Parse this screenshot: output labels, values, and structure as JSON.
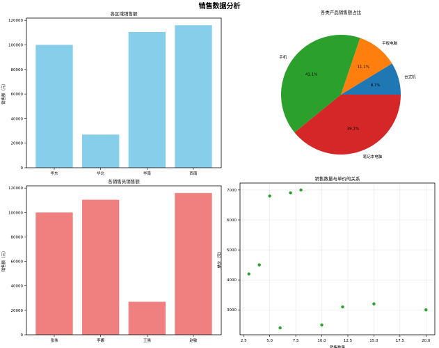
{
  "figure_title": "销售数据分析",
  "chart_data": [
    {
      "type": "bar",
      "title": "各区域销售额",
      "xlabel": "",
      "ylabel": "销售额（元）",
      "categories": [
        "华东",
        "华北",
        "华南",
        "西南"
      ],
      "values": [
        100000,
        27000,
        110500,
        116000
      ],
      "ylim": [
        0,
        121800
      ],
      "yticks": [
        0,
        20000,
        40000,
        60000,
        80000,
        100000,
        120000
      ],
      "color": "#87CEEB",
      "grid": false
    },
    {
      "type": "pie",
      "title": "各类产品销售额占比",
      "labels": [
        "台式机",
        "平板电脑",
        "手机",
        "笔记本电脑"
      ],
      "values": [
        8.7,
        11.1,
        41.1,
        39.1
      ],
      "pct_labels": [
        "8.7%",
        "11.1%",
        "41.1%",
        "39.1%"
      ],
      "colors": [
        "#1f77b4",
        "#ff7f0e",
        "#2ca02c",
        "#d62728"
      ],
      "start_angle": 0,
      "direction": "counterclockwise"
    },
    {
      "type": "bar",
      "title": "各销售员销售额",
      "xlabel": "",
      "ylabel": "销售额（元）",
      "categories": [
        "张伟",
        "李娜",
        "王强",
        "赵敏"
      ],
      "values": [
        100000,
        110500,
        27000,
        116000
      ],
      "ylim": [
        0,
        121800
      ],
      "yticks": [
        0,
        20000,
        40000,
        60000,
        80000,
        100000,
        120000
      ],
      "color": "#F08080",
      "grid": false
    },
    {
      "type": "scatter",
      "title": "销售数量与单价的关系",
      "xlabel": "销售数量",
      "ylabel": "单价（元）",
      "x": [
        3,
        4,
        5,
        6,
        7,
        8,
        10,
        12,
        15,
        20
      ],
      "y": [
        4200,
        4500,
        6800,
        2400,
        6900,
        7000,
        2500,
        3100,
        3200,
        3000
      ],
      "xlim": [
        2.15,
        20.85
      ],
      "ylim": [
        2170,
        7230
      ],
      "xticks": [
        2.5,
        5.0,
        7.5,
        10.0,
        12.5,
        15.0,
        17.5,
        20.0
      ],
      "xtick_labels": [
        "2.5",
        "5.0",
        "7.5",
        "10.0",
        "12.5",
        "15.0",
        "17.5",
        "20.0"
      ],
      "yticks": [
        3000,
        4000,
        5000,
        6000,
        7000
      ],
      "color": "#2ca02c",
      "grid": true
    }
  ]
}
